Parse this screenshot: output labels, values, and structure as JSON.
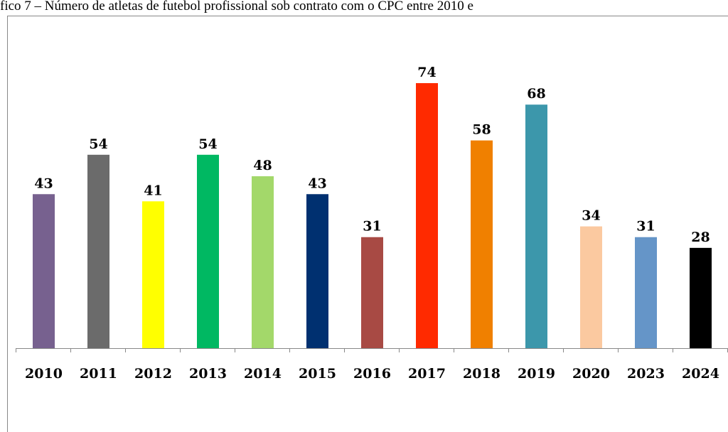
{
  "chart_data": {
    "type": "bar",
    "title": "fico 7 – Número de atletas de futebol profissional sob contrato com o CPC entre 2010 e",
    "categories": [
      "2010",
      "2011",
      "2012",
      "2013",
      "2014",
      "2015",
      "2016",
      "2017",
      "2018",
      "2019",
      "2020",
      "2023",
      "2024"
    ],
    "values": [
      43,
      54,
      41,
      54,
      48,
      43,
      31,
      74,
      58,
      68,
      34,
      31,
      28
    ],
    "colors": [
      "#77618f",
      "#6b6b6b",
      "#ffff00",
      "#00b862",
      "#a3d86a",
      "#003070",
      "#a84a44",
      "#ff2a00",
      "#f08000",
      "#3c97ab",
      "#fbc9a0",
      "#6595c8",
      "#000000"
    ]
  }
}
